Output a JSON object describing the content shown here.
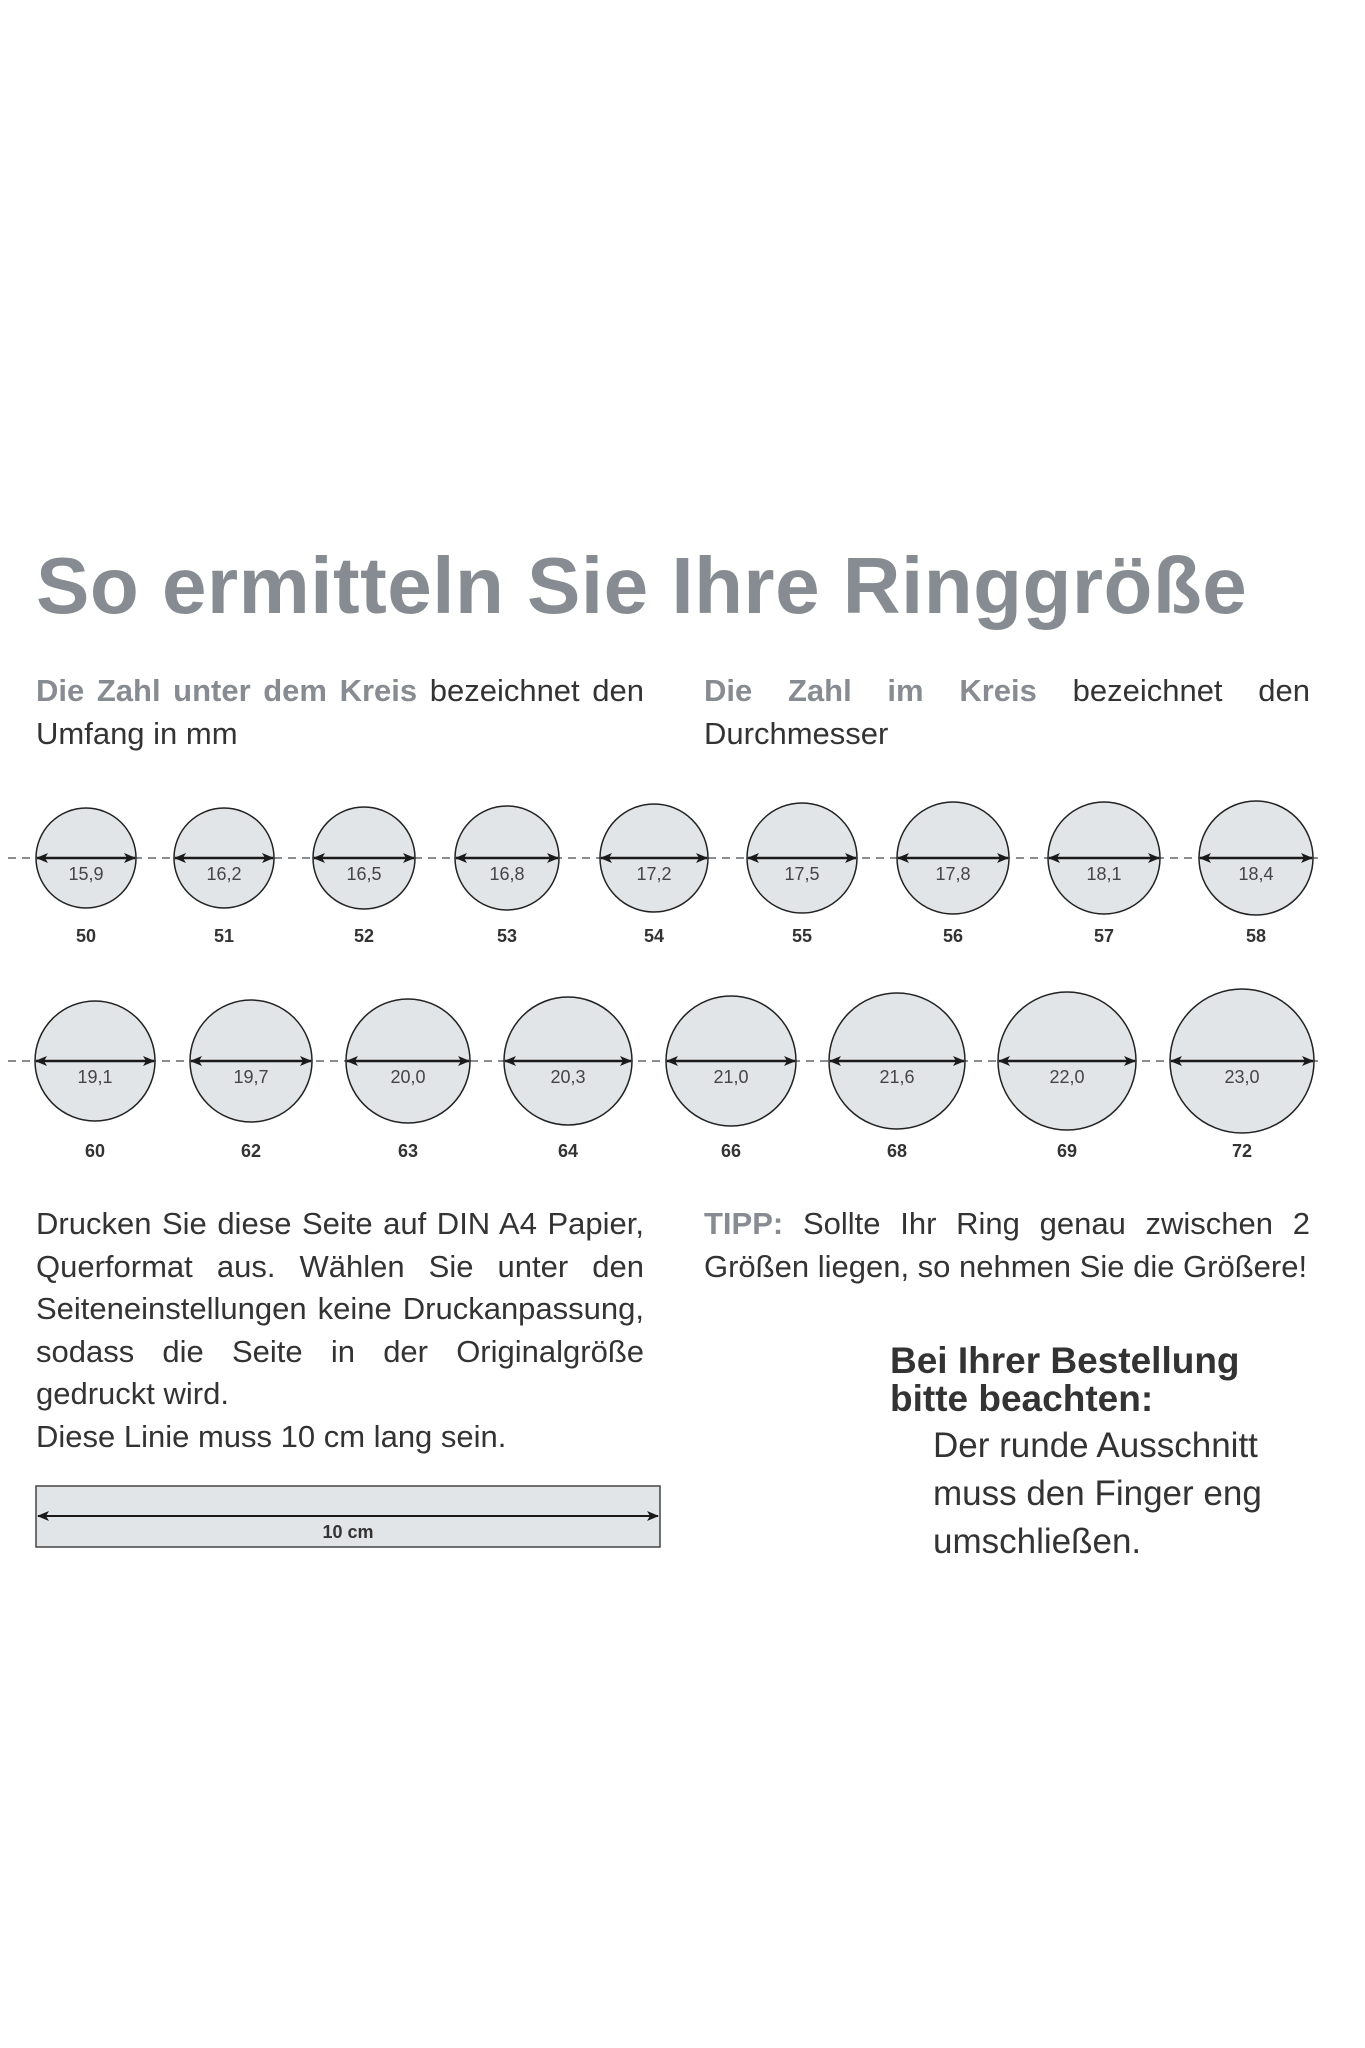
{
  "title": "So ermitteln Sie Ihre Ringgröße",
  "intro_left": {
    "highlight": "Die Zahl unter dem Kreis",
    "text": " bezeichnet den Umfang in mm"
  },
  "intro_right": {
    "highlight": "Die Zahl im Kreis",
    "text": " bezeichnet den Durchmesser"
  },
  "colors": {
    "accent_grey": "#878c92",
    "circle_fill": "#e2e5e8",
    "dash_line": "#8a8d90",
    "text": "#333333"
  },
  "rings_row1": [
    {
      "diameter": "15,9",
      "size": "50"
    },
    {
      "diameter": "16,2",
      "size": "51"
    },
    {
      "diameter": "16,5",
      "size": "52"
    },
    {
      "diameter": "16,8",
      "size": "53"
    },
    {
      "diameter": "17,2",
      "size": "54"
    },
    {
      "diameter": "17,5",
      "size": "55"
    },
    {
      "diameter": "17,8",
      "size": "56"
    },
    {
      "diameter": "18,1",
      "size": "57"
    },
    {
      "diameter": "18,4",
      "size": "58"
    }
  ],
  "rings_row2": [
    {
      "diameter": "19,1",
      "size": "60"
    },
    {
      "diameter": "19,7",
      "size": "62"
    },
    {
      "diameter": "20,0",
      "size": "63"
    },
    {
      "diameter": "20,3",
      "size": "64"
    },
    {
      "diameter": "21,0",
      "size": "66"
    },
    {
      "diameter": "21,6",
      "size": "68"
    },
    {
      "diameter": "22,0",
      "size": "69"
    },
    {
      "diameter": "23,0",
      "size": "72"
    }
  ],
  "print_instructions": "Drucken Sie diese Seite auf DIN A4 Papier, Querformat aus. Wählen Sie unter den Seiteneinstellungen keine Druckanpassung, sodass die Seite in der Originalgröße gedruckt wird.",
  "line_note": "Diese Linie muss 10 cm lang sein.",
  "ruler_label": "10 cm",
  "tip": {
    "label": "TIPP:",
    "text": " Sollte Ihr Ring genau zwischen 2 Größen liegen, so nehmen Sie die Größere!"
  },
  "order_note": {
    "title_line1": "Bei Ihrer Bestellung",
    "title_line2": "bitte beachten:",
    "line1": "Der runde Ausschnitt",
    "line2": "muss den Finger eng",
    "line3": "umschließen."
  }
}
